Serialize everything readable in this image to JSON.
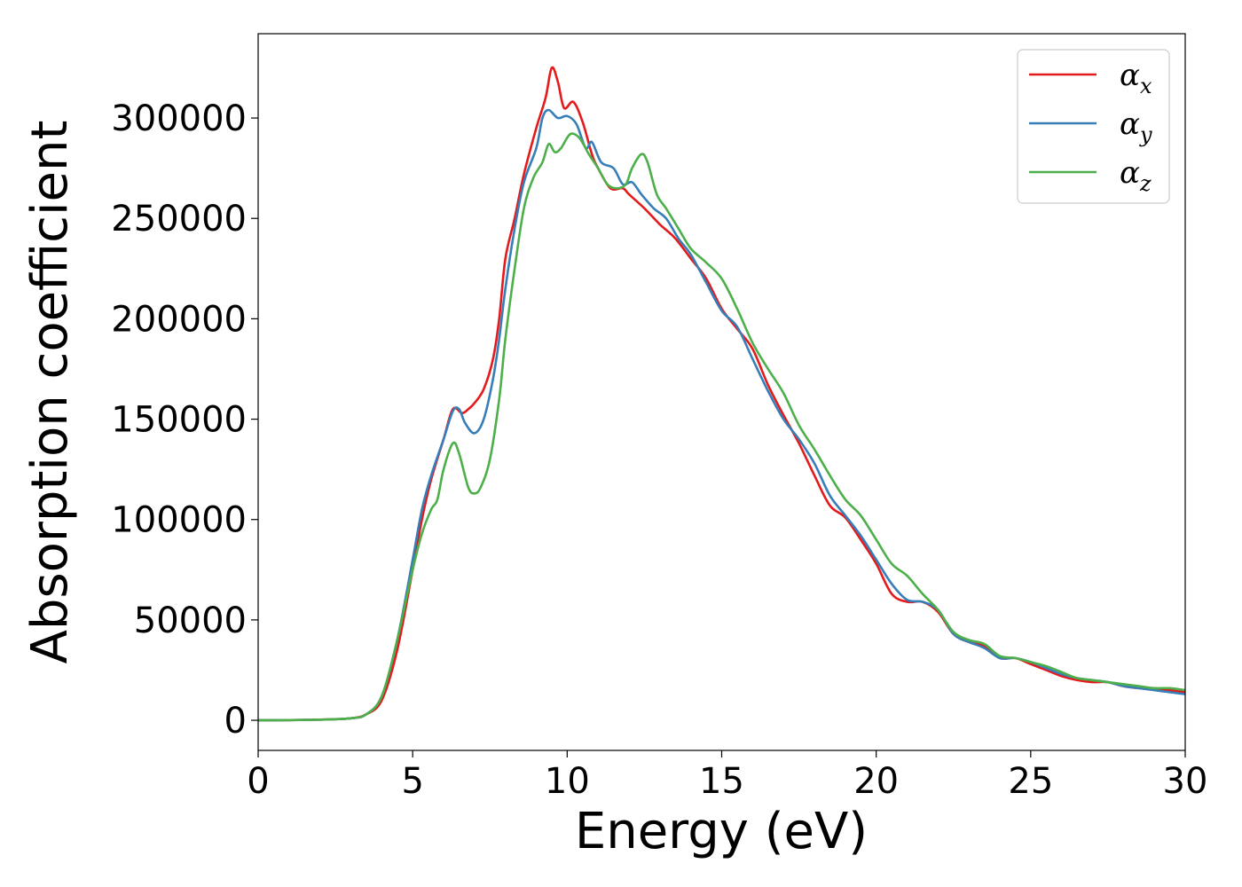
{
  "chart_data": {
    "type": "line",
    "title": "",
    "xlabel": "Energy (eV)",
    "ylabel": "Absorption coefficient",
    "xlim": [
      0,
      30
    ],
    "ylim": [
      -15000,
      342000
    ],
    "xticks": [
      0,
      5,
      10,
      15,
      20,
      25,
      30
    ],
    "yticks": [
      0,
      50000,
      100000,
      150000,
      200000,
      250000,
      300000
    ],
    "xtick_labels": [
      "0",
      "5",
      "10",
      "15",
      "20",
      "25",
      "30"
    ],
    "ytick_labels": [
      "0",
      "50000",
      "100000",
      "150000",
      "200000",
      "250000",
      "300000"
    ],
    "grid": false,
    "legend_position": "top-right",
    "series": [
      {
        "name": "α_x",
        "legend_main": "α",
        "legend_sub": "x",
        "color": "#e41a1c",
        "points": [
          [
            0,
            0
          ],
          [
            2,
            300
          ],
          [
            3,
            1000
          ],
          [
            3.5,
            3000
          ],
          [
            4,
            10000
          ],
          [
            4.5,
            35000
          ],
          [
            5,
            75000
          ],
          [
            5.3,
            100000
          ],
          [
            5.6,
            120000
          ],
          [
            6,
            140000
          ],
          [
            6.3,
            155000
          ],
          [
            6.6,
            153000
          ],
          [
            6.8,
            155000
          ],
          [
            7,
            158000
          ],
          [
            7.3,
            165000
          ],
          [
            7.6,
            180000
          ],
          [
            7.8,
            200000
          ],
          [
            8,
            230000
          ],
          [
            8.3,
            250000
          ],
          [
            8.6,
            272000
          ],
          [
            9,
            295000
          ],
          [
            9.3,
            310000
          ],
          [
            9.5,
            325000
          ],
          [
            9.7,
            318000
          ],
          [
            9.9,
            305000
          ],
          [
            10.2,
            308000
          ],
          [
            10.5,
            298000
          ],
          [
            10.8,
            282000
          ],
          [
            11,
            275000
          ],
          [
            11.4,
            265000
          ],
          [
            11.8,
            265000
          ],
          [
            12,
            262000
          ],
          [
            12.5,
            255000
          ],
          [
            13,
            247000
          ],
          [
            13.5,
            240000
          ],
          [
            14,
            230000
          ],
          [
            14.5,
            220000
          ],
          [
            15,
            205000
          ],
          [
            15.5,
            195000
          ],
          [
            16,
            185000
          ],
          [
            16.5,
            167000
          ],
          [
            17,
            152000
          ],
          [
            17.5,
            138000
          ],
          [
            18,
            122000
          ],
          [
            18.5,
            107000
          ],
          [
            19,
            101000
          ],
          [
            19.5,
            90000
          ],
          [
            20,
            78000
          ],
          [
            20.5,
            63000
          ],
          [
            21,
            59000
          ],
          [
            21.5,
            59000
          ],
          [
            22,
            54000
          ],
          [
            22.5,
            43000
          ],
          [
            23,
            39000
          ],
          [
            23.5,
            37000
          ],
          [
            24,
            31000
          ],
          [
            24.5,
            31000
          ],
          [
            25,
            28000
          ],
          [
            25.5,
            25000
          ],
          [
            26,
            22000
          ],
          [
            26.5,
            20000
          ],
          [
            27,
            19000
          ],
          [
            27.5,
            19000
          ],
          [
            28,
            17000
          ],
          [
            28.5,
            16000
          ],
          [
            29,
            16000
          ],
          [
            29.5,
            15000
          ],
          [
            30,
            14000
          ]
        ]
      },
      {
        "name": "α_y",
        "legend_main": "α",
        "legend_sub": "y",
        "color": "#377eb8",
        "points": [
          [
            0,
            0
          ],
          [
            2,
            300
          ],
          [
            3,
            1000
          ],
          [
            3.5,
            3000
          ],
          [
            4,
            12000
          ],
          [
            4.5,
            40000
          ],
          [
            5,
            80000
          ],
          [
            5.3,
            105000
          ],
          [
            5.6,
            122000
          ],
          [
            6,
            140000
          ],
          [
            6.3,
            154000
          ],
          [
            6.5,
            155000
          ],
          [
            6.7,
            148000
          ],
          [
            7,
            143000
          ],
          [
            7.3,
            150000
          ],
          [
            7.6,
            170000
          ],
          [
            7.8,
            190000
          ],
          [
            8,
            215000
          ],
          [
            8.3,
            245000
          ],
          [
            8.6,
            268000
          ],
          [
            9,
            285000
          ],
          [
            9.2,
            300000
          ],
          [
            9.4,
            304000
          ],
          [
            9.7,
            300000
          ],
          [
            10,
            301000
          ],
          [
            10.3,
            297000
          ],
          [
            10.6,
            285000
          ],
          [
            10.8,
            288000
          ],
          [
            11.1,
            278000
          ],
          [
            11.5,
            275000
          ],
          [
            11.8,
            267000
          ],
          [
            12.1,
            268000
          ],
          [
            12.4,
            262000
          ],
          [
            12.8,
            255000
          ],
          [
            13.2,
            250000
          ],
          [
            13.6,
            240000
          ],
          [
            14,
            232000
          ],
          [
            14.5,
            218000
          ],
          [
            15,
            204000
          ],
          [
            15.5,
            196000
          ],
          [
            16,
            180000
          ],
          [
            16.5,
            164000
          ],
          [
            17,
            150000
          ],
          [
            17.5,
            140000
          ],
          [
            18,
            128000
          ],
          [
            18.5,
            112000
          ],
          [
            19,
            102000
          ],
          [
            19.5,
            92000
          ],
          [
            20,
            80000
          ],
          [
            20.5,
            68000
          ],
          [
            21,
            60000
          ],
          [
            21.5,
            59000
          ],
          [
            22,
            55000
          ],
          [
            22.5,
            43000
          ],
          [
            23,
            39000
          ],
          [
            23.5,
            36000
          ],
          [
            24,
            31000
          ],
          [
            24.5,
            31000
          ],
          [
            25,
            29000
          ],
          [
            25.5,
            26000
          ],
          [
            26,
            23000
          ],
          [
            26.5,
            21000
          ],
          [
            27,
            20000
          ],
          [
            27.5,
            19000
          ],
          [
            28,
            17000
          ],
          [
            28.5,
            16000
          ],
          [
            29,
            15000
          ],
          [
            29.5,
            14000
          ],
          [
            30,
            13000
          ]
        ]
      },
      {
        "name": "α_z",
        "legend_main": "α",
        "legend_sub": "z",
        "color": "#4daf4a",
        "points": [
          [
            0,
            0
          ],
          [
            2,
            300
          ],
          [
            3,
            1000
          ],
          [
            3.5,
            3000
          ],
          [
            4,
            12000
          ],
          [
            4.5,
            40000
          ],
          [
            5,
            75000
          ],
          [
            5.3,
            93000
          ],
          [
            5.6,
            105000
          ],
          [
            5.8,
            110000
          ],
          [
            6,
            125000
          ],
          [
            6.3,
            138000
          ],
          [
            6.5,
            133000
          ],
          [
            6.8,
            116000
          ],
          [
            7,
            113000
          ],
          [
            7.2,
            116000
          ],
          [
            7.5,
            130000
          ],
          [
            7.8,
            160000
          ],
          [
            8,
            190000
          ],
          [
            8.3,
            225000
          ],
          [
            8.6,
            255000
          ],
          [
            8.9,
            270000
          ],
          [
            9.2,
            278000
          ],
          [
            9.4,
            287000
          ],
          [
            9.6,
            283000
          ],
          [
            9.8,
            285000
          ],
          [
            10.1,
            292000
          ],
          [
            10.4,
            290000
          ],
          [
            10.7,
            282000
          ],
          [
            11,
            275000
          ],
          [
            11.3,
            267000
          ],
          [
            11.6,
            265000
          ],
          [
            11.9,
            267000
          ],
          [
            12.1,
            275000
          ],
          [
            12.4,
            282000
          ],
          [
            12.6,
            278000
          ],
          [
            12.9,
            262000
          ],
          [
            13.2,
            255000
          ],
          [
            13.6,
            245000
          ],
          [
            14,
            235000
          ],
          [
            14.5,
            228000
          ],
          [
            15,
            220000
          ],
          [
            15.5,
            205000
          ],
          [
            16,
            188000
          ],
          [
            16.5,
            175000
          ],
          [
            17,
            163000
          ],
          [
            17.5,
            147000
          ],
          [
            18,
            135000
          ],
          [
            18.5,
            122000
          ],
          [
            19,
            110000
          ],
          [
            19.5,
            102000
          ],
          [
            20,
            90000
          ],
          [
            20.5,
            78000
          ],
          [
            21,
            72000
          ],
          [
            21.5,
            63000
          ],
          [
            22,
            55000
          ],
          [
            22.5,
            44000
          ],
          [
            23,
            40000
          ],
          [
            23.5,
            38000
          ],
          [
            24,
            32000
          ],
          [
            24.5,
            31000
          ],
          [
            25,
            29000
          ],
          [
            25.5,
            27000
          ],
          [
            26,
            24000
          ],
          [
            26.5,
            21000
          ],
          [
            27,
            20000
          ],
          [
            27.5,
            19000
          ],
          [
            28,
            18000
          ],
          [
            28.5,
            17000
          ],
          [
            29,
            16000
          ],
          [
            29.5,
            16000
          ],
          [
            30,
            15000
          ]
        ]
      }
    ]
  }
}
